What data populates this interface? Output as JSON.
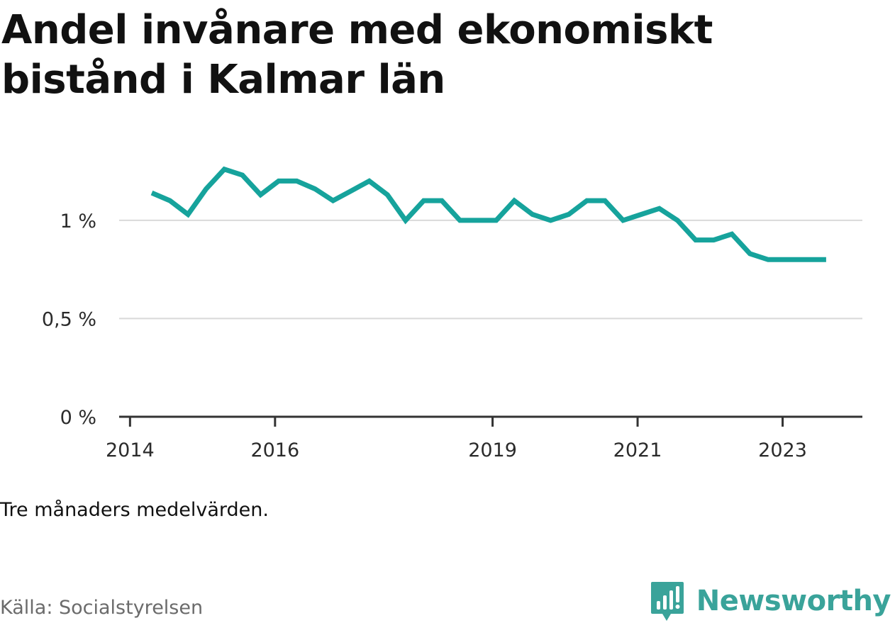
{
  "title": "Andel invånare med ekonomiskt bistånd i Kalmar län",
  "note": "Tre månaders medelvärden.",
  "source": "Källa: Socialstyrelsen",
  "brand": {
    "name": "Newsworthy",
    "color": "#3aa39a",
    "icon": "newsworthy-logo-icon"
  },
  "chart_data": {
    "type": "line",
    "ylim": [
      0,
      1.4
    ],
    "y_ticks": [
      {
        "value": 0,
        "label": "0 %"
      },
      {
        "value": 0.5,
        "label": "0,5 %"
      },
      {
        "value": 1,
        "label": "1 %"
      }
    ],
    "x_ticks": [
      {
        "value": 2014,
        "label": "2014"
      },
      {
        "value": 2016,
        "label": "2016"
      },
      {
        "value": 2019,
        "label": "2019"
      },
      {
        "value": 2021,
        "label": "2021"
      },
      {
        "value": 2023,
        "label": "2023"
      }
    ],
    "xlim": [
      2013.85,
      2024.1
    ],
    "grid": true,
    "line_color": "#16a39c",
    "series": [
      {
        "x": [
          2014.3,
          2014.55,
          2014.8,
          2015.05,
          2015.3,
          2015.55,
          2015.8,
          2016.05,
          2016.3,
          2016.55,
          2016.8,
          2017.05,
          2017.3,
          2017.55,
          2017.8,
          2018.05,
          2018.3,
          2018.55,
          2018.8,
          2019.05,
          2019.3,
          2019.55,
          2019.8,
          2020.05,
          2020.3,
          2020.55,
          2020.8,
          2021.05,
          2021.3,
          2021.55,
          2021.8,
          2022.05,
          2022.3,
          2022.55,
          2022.8,
          2023.05,
          2023.3,
          2023.6
        ],
        "values": [
          1.14,
          1.1,
          1.03,
          1.16,
          1.26,
          1.23,
          1.13,
          1.2,
          1.2,
          1.16,
          1.1,
          1.15,
          1.2,
          1.13,
          1.0,
          1.1,
          1.1,
          1.0,
          1.0,
          1.0,
          1.1,
          1.03,
          1.0,
          1.03,
          1.1,
          1.1,
          1.0,
          1.03,
          1.06,
          1.0,
          0.9,
          0.9,
          0.93,
          0.83,
          0.8,
          0.8,
          0.8,
          0.8
        ]
      }
    ]
  }
}
